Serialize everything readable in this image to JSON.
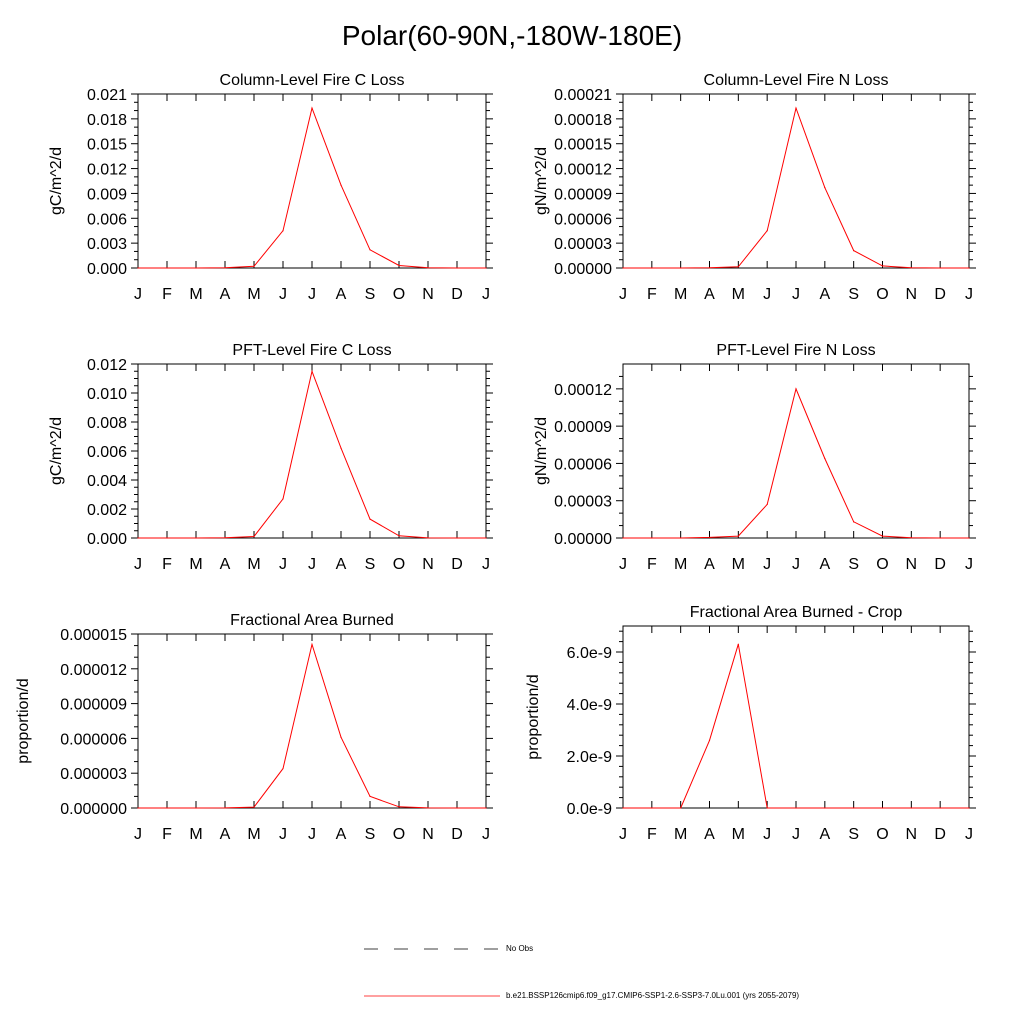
{
  "page_title": "Polar(60-90N,-180W-180E)",
  "colors": {
    "series": "#ff0000",
    "axis": "#000000",
    "obs_line": "#000000"
  },
  "legend": {
    "items": [
      {
        "label": "No Obs",
        "style": "dashed",
        "color": "#000000"
      },
      {
        "label": "b.e21.BSSP126cmip6.f09_g17.CMIP6-SSP1-2.6-SSP3-7.0Lu.001 (yrs 2055-2079)",
        "style": "solid",
        "color": "#ff0000"
      }
    ]
  },
  "chart_data": [
    {
      "type": "line",
      "title": "Column-Level Fire C Loss",
      "ylabel": "gC/m^2/d",
      "xlabel": "",
      "x": [
        "J",
        "F",
        "M",
        "A",
        "M",
        "J",
        "J",
        "A",
        "S",
        "O",
        "N",
        "D",
        "J"
      ],
      "ylim": [
        0,
        0.021
      ],
      "yticks": [
        0,
        0.003,
        0.006,
        0.009,
        0.012,
        0.015,
        0.018,
        0.021
      ],
      "ytick_labels": [
        "0.000",
        "0.003",
        "0.006",
        "0.009",
        "0.012",
        "0.015",
        "0.018",
        "0.021"
      ],
      "yminor_per_major": 2,
      "series": [
        {
          "values": [
            0,
            0,
            0,
            2e-05,
            0.0002,
            0.0045,
            0.0193,
            0.01,
            0.0022,
            0.0003,
            2e-05,
            0,
            0
          ]
        }
      ]
    },
    {
      "type": "line",
      "title": "Column-Level Fire N Loss",
      "ylabel": "gN/m^2/d",
      "xlabel": "",
      "x": [
        "J",
        "F",
        "M",
        "A",
        "M",
        "J",
        "J",
        "A",
        "S",
        "O",
        "N",
        "D",
        "J"
      ],
      "ylim": [
        0,
        0.00021
      ],
      "yticks": [
        0,
        3e-05,
        6e-05,
        9e-05,
        0.00012,
        0.00015,
        0.00018,
        0.00021
      ],
      "ytick_labels": [
        "0.00000",
        "0.00003",
        "0.00006",
        "0.00009",
        "0.00012",
        "0.00015",
        "0.00018",
        "0.00021"
      ],
      "yminor_per_major": 2,
      "series": [
        {
          "values": [
            0,
            0,
            0,
            2e-07,
            1.5e-06,
            4.5e-05,
            0.000193,
            9.7e-05,
            2.1e-05,
            2.5e-06,
            2e-07,
            0,
            0
          ]
        }
      ]
    },
    {
      "type": "line",
      "title": "PFT-Level Fire C Loss",
      "ylabel": "gC/m^2/d",
      "xlabel": "",
      "x": [
        "J",
        "F",
        "M",
        "A",
        "M",
        "J",
        "J",
        "A",
        "S",
        "O",
        "N",
        "D",
        "J"
      ],
      "ylim": [
        0,
        0.012
      ],
      "yticks": [
        0,
        0.002,
        0.004,
        0.006,
        0.008,
        0.01,
        0.012
      ],
      "ytick_labels": [
        "0.000",
        "0.002",
        "0.004",
        "0.006",
        "0.008",
        "0.010",
        "0.012"
      ],
      "yminor_per_major": 3,
      "series": [
        {
          "values": [
            0,
            0,
            0,
            2e-05,
            0.0001,
            0.0027,
            0.0115,
            0.0062,
            0.0013,
            0.00015,
            1e-05,
            0,
            0
          ]
        }
      ]
    },
    {
      "type": "line",
      "title": "PFT-Level Fire N Loss",
      "ylabel": "gN/m^2/d",
      "xlabel": "",
      "x": [
        "J",
        "F",
        "M",
        "A",
        "M",
        "J",
        "J",
        "A",
        "S",
        "O",
        "N",
        "D",
        "J"
      ],
      "ylim": [
        0,
        0.00014
      ],
      "yticks": [
        0,
        3e-05,
        6e-05,
        9e-05,
        0.00012
      ],
      "ytick_labels": [
        "0.00000",
        "0.00003",
        "0.00006",
        "0.00009",
        "0.00012"
      ],
      "yminor_per_major": 2,
      "series": [
        {
          "values": [
            0,
            0,
            0,
            5e-07,
            1.5e-06,
            2.7e-05,
            0.00012,
            6.4e-05,
            1.3e-05,
            1.5e-06,
            2e-07,
            0,
            0
          ]
        }
      ]
    },
    {
      "type": "line",
      "title": "Fractional Area Burned",
      "ylabel": "proportion/d",
      "xlabel": "",
      "x": [
        "J",
        "F",
        "M",
        "A",
        "M",
        "J",
        "J",
        "A",
        "S",
        "O",
        "N",
        "D",
        "J"
      ],
      "ylim": [
        0,
        1.5e-05
      ],
      "yticks": [
        0,
        3e-06,
        6e-06,
        9e-06,
        1.2e-05,
        1.5e-05
      ],
      "ytick_labels": [
        "0.000000",
        "0.000003",
        "0.000006",
        "0.000009",
        "0.000012",
        "0.000015"
      ],
      "yminor_per_major": 2,
      "series": [
        {
          "values": [
            0,
            0,
            0,
            1e-08,
            8e-08,
            3.4e-06,
            1.41e-05,
            6.1e-06,
            1e-06,
            1e-07,
            1e-08,
            0,
            0
          ]
        }
      ]
    },
    {
      "type": "line",
      "title": "Fractional Area Burned - Crop",
      "ylabel": "proportion/d",
      "xlabel": "",
      "x": [
        "J",
        "F",
        "M",
        "A",
        "M",
        "J",
        "J",
        "A",
        "S",
        "O",
        "N",
        "D",
        "J"
      ],
      "ylim": [
        0,
        7e-09
      ],
      "yticks": [
        0,
        2e-09,
        4e-09,
        6e-09
      ],
      "ytick_labels": [
        "0.0e-9",
        "2.0e-9",
        "4.0e-9",
        "6.0e-9"
      ],
      "yminor_per_major": 4,
      "series": [
        {
          "values": [
            0,
            0,
            0,
            2.6e-09,
            6.3e-09,
            0,
            0,
            0,
            0,
            0,
            0,
            0,
            0
          ]
        }
      ]
    }
  ]
}
